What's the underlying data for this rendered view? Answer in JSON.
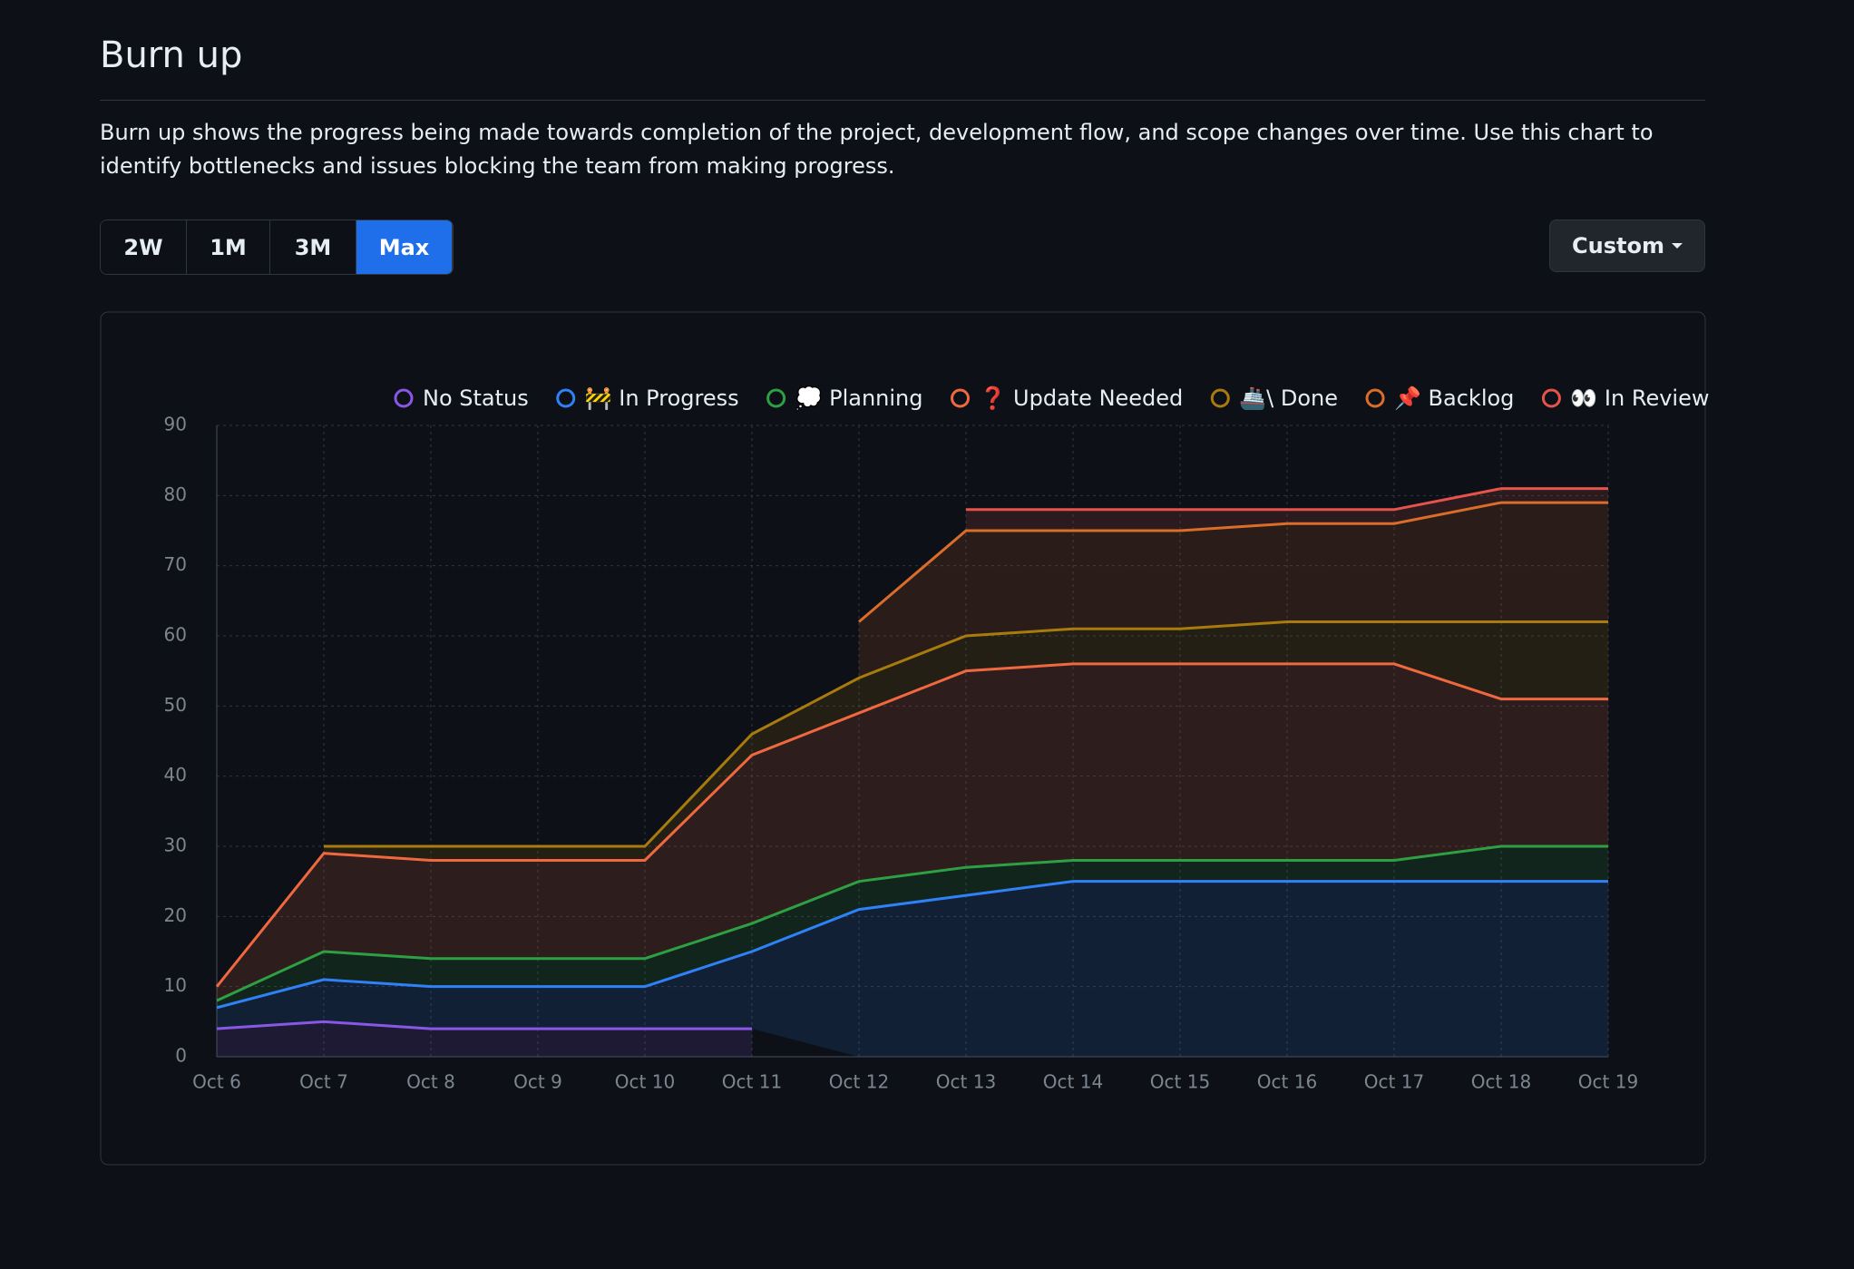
{
  "header": {
    "title": "Burn up",
    "description": "Burn up shows the progress being made towards completion of the project, development flow, and scope changes over time. Use this chart to identify bottlenecks and issues blocking the team from making progress."
  },
  "controls": {
    "ranges": [
      "2W",
      "1M",
      "3M",
      "Max"
    ],
    "active_range": 3,
    "custom": "Custom"
  },
  "chart_data": {
    "type": "stacked-area",
    "categories": [
      "Oct 6",
      "Oct 7",
      "Oct 8",
      "Oct 9",
      "Oct 10",
      "Oct 11",
      "Oct 12",
      "Oct 13",
      "Oct 14",
      "Oct 15",
      "Oct 16",
      "Oct 17",
      "Oct 18",
      "Oct 19"
    ],
    "series": [
      {
        "name": "No Status",
        "color": "#8957e5",
        "values": [
          4,
          5,
          4,
          4,
          4,
          4,
          null,
          null,
          null,
          null,
          null,
          null,
          null,
          null
        ]
      },
      {
        "name": "🚧 In Progress",
        "color": "#2f81f7",
        "values": [
          3,
          6,
          6,
          6,
          6,
          11,
          21,
          23,
          25,
          25,
          25,
          25,
          25,
          25
        ]
      },
      {
        "name": "💭 Planning",
        "color": "#2ea043",
        "values": [
          1,
          4,
          4,
          4,
          4,
          4,
          4,
          4,
          3,
          3,
          3,
          3,
          5,
          5
        ]
      },
      {
        "name": "❓ Update Needed",
        "color": "#f0683f",
        "values": [
          2,
          14,
          14,
          14,
          14,
          24,
          24,
          28,
          28,
          28,
          28,
          28,
          21,
          21
        ]
      },
      {
        "name": "🚢\\ Done",
        "color": "#a87b0c",
        "values": [
          null,
          1,
          2,
          2,
          2,
          3,
          5,
          5,
          5,
          5,
          6,
          6,
          11,
          11
        ]
      },
      {
        "name": "📌 Backlog",
        "color": "#db6d28",
        "values": [
          null,
          null,
          null,
          null,
          null,
          null,
          8,
          15,
          14,
          14,
          14,
          14,
          17,
          17
        ]
      },
      {
        "name": "👀 In Review",
        "color": "#e5534b",
        "values": [
          null,
          null,
          null,
          null,
          null,
          null,
          null,
          3,
          3,
          3,
          2,
          2,
          2,
          2
        ]
      }
    ],
    "ylim": [
      0,
      90
    ],
    "yticks": [
      0,
      10,
      20,
      30,
      40,
      50,
      60,
      70,
      80,
      90
    ],
    "grid": true
  }
}
